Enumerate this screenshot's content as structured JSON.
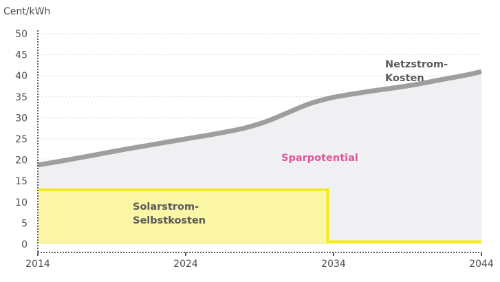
{
  "chart_data": {
    "type": "area",
    "title": "",
    "ylabel": "Cent/kWh",
    "xlabel": "",
    "ylim": [
      0,
      50
    ],
    "xlim": [
      2014,
      2044
    ],
    "yticks": [
      "0",
      "5",
      "10",
      "15",
      "20",
      "25",
      "30",
      "35",
      "40",
      "45",
      "50"
    ],
    "xticks": [
      "2014",
      "2024",
      "2034",
      "2044"
    ],
    "grid": true,
    "series": [
      {
        "name": "Netzstrom-Kosten",
        "kind": "line",
        "color": "#9e9e9e",
        "fill": "#f0f0f3",
        "x": [
          2014,
          2016,
          2018,
          2020,
          2022,
          2024,
          2026,
          2028,
          2029.5,
          2031,
          2032.5,
          2034,
          2035.5,
          2037,
          2039,
          2041,
          2043,
          2044
        ],
        "y": [
          18.8,
          20.0,
          21.3,
          22.6,
          23.8,
          25.0,
          26.2,
          27.6,
          29.2,
          31.4,
          33.5,
          34.9,
          35.8,
          36.6,
          37.6,
          38.9,
          40.2,
          41.0
        ]
      },
      {
        "name": "Solarstrom-Selbstkosten",
        "kind": "step",
        "color": "#f2ea20",
        "fill": "#fbf6a6",
        "x": [
          2014,
          2033.6,
          2033.6,
          2044
        ],
        "y": [
          12.9,
          12.9,
          0.6,
          0.6
        ]
      }
    ],
    "annotations": {
      "grid_series": [
        "Netzstrom-",
        "Kosten"
      ],
      "savings": "Sparpotential",
      "solar": [
        "Solarstrom-",
        "Selbstkosten"
      ]
    }
  },
  "colors": {
    "grid": "#e2e2e2",
    "axis": "#5a5a5a",
    "savings_text": "#e0559c",
    "text": "#4f4f4f"
  }
}
